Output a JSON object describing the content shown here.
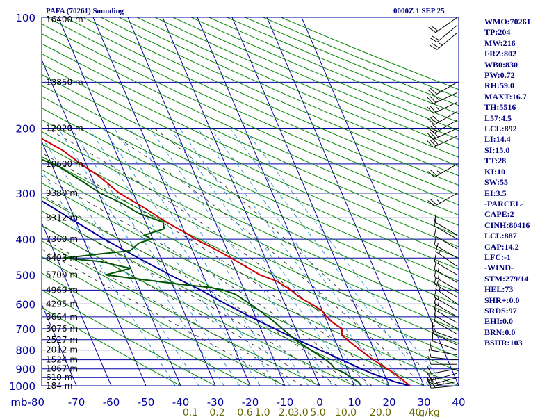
{
  "header": {
    "title": "PAFA (70261) Sounding",
    "datetime": "0000Z  1 SEP 25"
  },
  "colors": {
    "frame": "#0000a0",
    "dry_adiabat": "#008800",
    "moist_adiabat": "#3a3a3a",
    "mixing_ratio": "#3399cc",
    "temperature": "#cc0000",
    "dewpoint": "#005500",
    "parcel": "#000099",
    "barb": "#000000",
    "ratio_label": "#666600"
  },
  "chart_data": {
    "type": "skew-t log-p sounding",
    "pressure_unit": "mb",
    "ylim": [
      1000,
      100
    ],
    "xlim": [
      -80,
      40
    ],
    "pressure_labels": [
      100,
      200,
      300,
      400,
      500,
      600,
      700,
      800,
      900,
      1000
    ],
    "pressure_gridlines": [
      100,
      150,
      200,
      250,
      300,
      350,
      400,
      450,
      500,
      550,
      600,
      650,
      700,
      750,
      800,
      850,
      900,
      950,
      1000
    ],
    "height_labels": [
      {
        "p": 100,
        "text": "16400 m"
      },
      {
        "p": 150,
        "text": "13850 m"
      },
      {
        "p": 200,
        "text": "12020 m"
      },
      {
        "p": 250,
        "text": "10600 m"
      },
      {
        "p": 300,
        "text": "9380 m"
      },
      {
        "p": 350,
        "text": "8312 m"
      },
      {
        "p": 400,
        "text": "7360 m"
      },
      {
        "p": 450,
        "text": "6493 m"
      },
      {
        "p": 500,
        "text": "5700 m"
      },
      {
        "p": 550,
        "text": "4969 m"
      },
      {
        "p": 600,
        "text": "4295 m"
      },
      {
        "p": 650,
        "text": "3664 m"
      },
      {
        "p": 700,
        "text": "3076 m"
      },
      {
        "p": 750,
        "text": "2527 m"
      },
      {
        "p": 800,
        "text": "2012 m"
      },
      {
        "p": 850,
        "text": "1524 m"
      },
      {
        "p": 900,
        "text": "1067 m"
      },
      {
        "p": 950,
        "text": "610 m"
      },
      {
        "p": 1000,
        "text": "184 m"
      }
    ],
    "temp_ticks": [
      -80,
      -70,
      -60,
      -50,
      -40,
      -30,
      -20,
      -10,
      0,
      10,
      20,
      30,
      40
    ],
    "temp_tick_labels": [
      "mb-80",
      "-70",
      "-60",
      "-50",
      "-40",
      "-30",
      "-20",
      "-10",
      "0",
      "10",
      "20",
      "30",
      "40"
    ],
    "mixing_ratio_labels": [
      {
        "t": -37.2,
        "text": "0.1"
      },
      {
        "t": -29.5,
        "text": "0.2"
      },
      {
        "t": -21.5,
        "text": "0.6"
      },
      {
        "t": -16.5,
        "text": "1.0"
      },
      {
        "t": -9.6,
        "text": "2.0"
      },
      {
        "t": -5.5,
        "text": "3.0"
      },
      {
        "t": -0.5,
        "text": "5.0"
      },
      {
        "t": 7.5,
        "text": "10.0"
      },
      {
        "t": 17.5,
        "text": "20.0"
      },
      {
        "t": 27.5,
        "text": "40"
      },
      {
        "t": 31.5,
        "text": "g/kg"
      }
    ],
    "temperature": [
      [
        1000,
        26.0
      ],
      [
        975,
        25.0
      ],
      [
        925,
        23.0
      ],
      [
        900,
        21.5
      ],
      [
        875,
        20.0
      ],
      [
        850,
        18.6
      ],
      [
        800,
        16.0
      ],
      [
        760,
        14.0
      ],
      [
        730,
        12.6
      ],
      [
        720,
        12.8
      ],
      [
        700,
        13.4
      ],
      [
        675,
        11.6
      ],
      [
        650,
        10.5
      ],
      [
        625,
        9.8
      ],
      [
        600,
        7.6
      ],
      [
        575,
        5.0
      ],
      [
        550,
        3.4
      ],
      [
        520,
        0.5
      ],
      [
        500,
        -3.6
      ],
      [
        450,
        -9.8
      ],
      [
        420,
        -14.3
      ],
      [
        400,
        -17.8
      ],
      [
        390,
        -19.0
      ],
      [
        360,
        -24.0
      ],
      [
        330,
        -28.5
      ],
      [
        300,
        -34.0
      ],
      [
        270,
        -37.8
      ],
      [
        250,
        -41.5
      ],
      [
        230,
        -45.0
      ],
      [
        215,
        -49.2
      ],
      [
        205,
        -52.0
      ],
      [
        190,
        -55.7
      ],
      [
        175,
        -59.8
      ],
      [
        160,
        -64.5
      ],
      [
        150,
        -66.0
      ],
      [
        130,
        -68.8
      ],
      [
        100,
        -73.5
      ]
    ],
    "dewpoint": [
      [
        1000,
        12.0
      ],
      [
        975,
        11.5
      ],
      [
        950,
        10.0
      ],
      [
        920,
        8.5
      ],
      [
        900,
        6.5
      ],
      [
        875,
        6.0
      ],
      [
        850,
        5.0
      ],
      [
        800,
        1.8
      ],
      [
        750,
        -1.5
      ],
      [
        725,
        -2.5
      ],
      [
        700,
        -3.8
      ],
      [
        675,
        -5.0
      ],
      [
        650,
        -6.5
      ],
      [
        620,
        -8.5
      ],
      [
        600,
        -10.0
      ],
      [
        565,
        -13.0
      ],
      [
        560,
        -14.0
      ],
      [
        550,
        -16.0
      ],
      [
        540,
        -20.0
      ],
      [
        530,
        -28.0
      ],
      [
        500,
        -48.0
      ],
      [
        480,
        -40.0
      ],
      [
        460,
        -48.0
      ],
      [
        450,
        -58.0
      ],
      [
        430,
        -38.0
      ],
      [
        410,
        -34.5
      ],
      [
        400,
        -30.5
      ],
      [
        390,
        -32.0
      ],
      [
        375,
        -25.5
      ],
      [
        360,
        -25.0
      ],
      [
        340,
        -31.0
      ],
      [
        320,
        -34.5
      ],
      [
        300,
        -39.5
      ],
      [
        280,
        -43.0
      ],
      [
        255,
        -48.0
      ],
      [
        250,
        -49.5
      ],
      [
        240,
        -53.5
      ],
      [
        230,
        -58.0
      ],
      [
        210,
        -62.0
      ],
      [
        200,
        -66.5
      ],
      [
        195,
        -69.0
      ],
      [
        190,
        -72.5
      ],
      [
        185,
        -76.0
      ],
      [
        180,
        -80.0
      ]
    ],
    "parcel": [
      [
        1000,
        26.0
      ],
      [
        975,
        22.0
      ],
      [
        925,
        16.5
      ],
      [
        900,
        14.0
      ],
      [
        850,
        9.5
      ],
      [
        800,
        4.5
      ],
      [
        750,
        -0.8
      ],
      [
        700,
        -6.0
      ],
      [
        650,
        -11.5
      ],
      [
        600,
        -17.0
      ],
      [
        550,
        -22.5
      ],
      [
        500,
        -29.5
      ],
      [
        450,
        -36.5
      ],
      [
        400,
        -44.0
      ],
      [
        350,
        -51.5
      ],
      [
        300,
        -60.0
      ],
      [
        250,
        -69.0
      ],
      [
        210,
        -80.0
      ]
    ],
    "wind_barbs": [
      {
        "p": 1000,
        "dir": 265,
        "spd": 15
      },
      {
        "p": 975,
        "dir": 260,
        "spd": 25
      },
      {
        "p": 950,
        "dir": 255,
        "spd": 20
      },
      {
        "p": 925,
        "dir": 255,
        "spd": 15
      },
      {
        "p": 900,
        "dir": 260,
        "spd": 10
      },
      {
        "p": 875,
        "dir": 270,
        "spd": 10
      },
      {
        "p": 850,
        "dir": 275,
        "spd": 10
      },
      {
        "p": 825,
        "dir": 280,
        "spd": 10
      },
      {
        "p": 800,
        "dir": 290,
        "spd": 10
      },
      {
        "p": 775,
        "dir": 295,
        "spd": 10
      },
      {
        "p": 750,
        "dir": 290,
        "spd": 10
      },
      {
        "p": 725,
        "dir": 300,
        "spd": 10
      },
      {
        "p": 700,
        "dir": 300,
        "spd": 10
      },
      {
        "p": 675,
        "dir": 300,
        "spd": 15
      },
      {
        "p": 650,
        "dir": 300,
        "spd": 15
      },
      {
        "p": 625,
        "dir": 300,
        "spd": 15
      },
      {
        "p": 600,
        "dir": 305,
        "spd": 15
      },
      {
        "p": 575,
        "dir": 300,
        "spd": 15
      },
      {
        "p": 550,
        "dir": 300,
        "spd": 15
      },
      {
        "p": 525,
        "dir": 300,
        "spd": 15
      },
      {
        "p": 500,
        "dir": 300,
        "spd": 15
      },
      {
        "p": 475,
        "dir": 305,
        "spd": 15
      },
      {
        "p": 450,
        "dir": 300,
        "spd": 10
      },
      {
        "p": 425,
        "dir": 300,
        "spd": 10
      },
      {
        "p": 400,
        "dir": 300,
        "spd": 10
      },
      {
        "p": 390,
        "dir": 300,
        "spd": 10
      },
      {
        "p": 300,
        "dir": 240,
        "spd": 25
      },
      {
        "p": 250,
        "dir": 240,
        "spd": 25
      },
      {
        "p": 210,
        "dir": 245,
        "spd": 30
      },
      {
        "p": 200,
        "dir": 245,
        "spd": 30
      },
      {
        "p": 190,
        "dir": 240,
        "spd": 30
      },
      {
        "p": 180,
        "dir": 240,
        "spd": 30
      },
      {
        "p": 170,
        "dir": 245,
        "spd": 25
      },
      {
        "p": 160,
        "dir": 245,
        "spd": 25
      },
      {
        "p": 150,
        "dir": 240,
        "spd": 25
      },
      {
        "p": 110,
        "dir": 230,
        "spd": 25
      },
      {
        "p": 105,
        "dir": 230,
        "spd": 20
      },
      {
        "p": 100,
        "dir": 235,
        "spd": 20
      }
    ]
  },
  "indices": [
    "WMO:70261",
    "TP:204",
    "MW:216",
    "FRZ:802",
    "WB0:830",
    "PW:0.72",
    "RH:59.0",
    "MAXT:16.7",
    "TH:5516",
    "L57:4.5",
    "LCL:892",
    "LI:14.4",
    "SI:15.0",
    "TT:28",
    "KI:10",
    "SW:55",
    "EI:3.5",
    "-PARCEL-",
    "CAPE:2",
    "CINH:80416",
    "LCL:887",
    "CAP:14.2",
    "LFC:-1",
    "-WIND-",
    "STM:279/14",
    "HEL:73",
    "SHR+:0.0",
    "SRDS:97",
    "EHI:0.0",
    "BRN:0.0",
    "BSHR:103"
  ]
}
